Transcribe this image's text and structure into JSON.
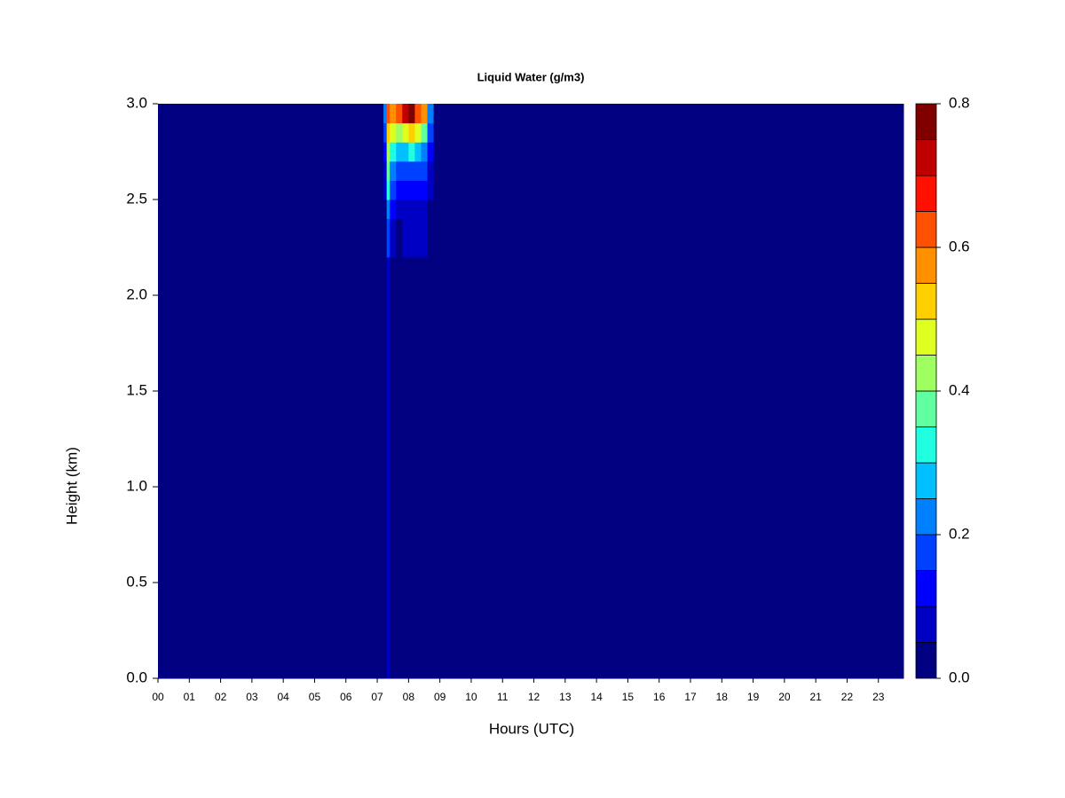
{
  "chart_data": {
    "type": "contour",
    "title": "Liquid Water (g/m3)",
    "xlabel": "Hours (UTC)",
    "ylabel": "Height (km)",
    "xlim": [
      0,
      23.8
    ],
    "ylim": [
      0,
      3
    ],
    "xticks": [
      {
        "value": 0,
        "label": "00"
      },
      {
        "value": 1,
        "label": "01"
      },
      {
        "value": 2,
        "label": "02"
      },
      {
        "value": 3,
        "label": "03"
      },
      {
        "value": 4,
        "label": "04"
      },
      {
        "value": 5,
        "label": "05"
      },
      {
        "value": 6,
        "label": "06"
      },
      {
        "value": 7,
        "label": "07"
      },
      {
        "value": 8,
        "label": "08"
      },
      {
        "value": 9,
        "label": "09"
      },
      {
        "value": 10,
        "label": "10"
      },
      {
        "value": 11,
        "label": "11"
      },
      {
        "value": 12,
        "label": "12"
      },
      {
        "value": 13,
        "label": "13"
      },
      {
        "value": 14,
        "label": "14"
      },
      {
        "value": 15,
        "label": "15"
      },
      {
        "value": 16,
        "label": "16"
      },
      {
        "value": 17,
        "label": "17"
      },
      {
        "value": 18,
        "label": "18"
      },
      {
        "value": 19,
        "label": "19"
      },
      {
        "value": 20,
        "label": "20"
      },
      {
        "value": 21,
        "label": "21"
      },
      {
        "value": 22,
        "label": "22"
      },
      {
        "value": 23,
        "label": "23"
      }
    ],
    "yticks": [
      {
        "value": 0,
        "label": "0.0"
      },
      0.5,
      {
        "value": 1,
        "label": "1.0"
      },
      1.5,
      {
        "value": 2,
        "label": "2.0"
      },
      2.5,
      {
        "value": 3,
        "label": "3.0"
      }
    ],
    "x_edges": [
      0,
      6.5,
      6.7,
      7.2,
      7.3,
      7.4,
      7.6,
      7.8,
      8.0,
      8.2,
      8.4,
      8.6,
      8.8,
      23.8
    ],
    "y_edges": [
      0,
      2.2,
      2.4,
      2.5,
      2.6,
      2.7,
      2.8,
      2.9,
      3.0
    ],
    "z": [
      [
        0,
        0,
        0,
        0,
        0.06,
        0,
        0,
        0,
        0,
        0,
        0,
        0,
        0
      ],
      [
        0,
        0,
        0,
        0,
        0.15,
        0.06,
        0.03,
        0.06,
        0.06,
        0.06,
        0.06,
        0,
        0
      ],
      [
        0,
        0,
        0,
        0.03,
        0.2,
        0.1,
        0.08,
        0.08,
        0.08,
        0.08,
        0.08,
        0.03,
        0
      ],
      [
        0,
        0,
        0,
        0.06,
        0.3,
        0.15,
        0.12,
        0.12,
        0.12,
        0.12,
        0.1,
        0.06,
        0
      ],
      [
        0,
        0,
        0,
        0.08,
        0.35,
        0.2,
        0.17,
        0.18,
        0.18,
        0.17,
        0.15,
        0.08,
        0
      ],
      [
        0,
        0,
        0,
        0.1,
        0.42,
        0.3,
        0.25,
        0.28,
        0.3,
        0.26,
        0.22,
        0.1,
        0
      ],
      [
        0,
        0,
        0,
        0.15,
        0.5,
        0.45,
        0.4,
        0.45,
        0.5,
        0.45,
        0.35,
        0.15,
        0
      ],
      [
        0,
        0,
        0,
        0.2,
        0.6,
        0.55,
        0.62,
        0.7,
        0.78,
        0.6,
        0.55,
        0.2,
        0
      ]
    ],
    "levels": [
      0,
      0.05,
      0.1,
      0.15,
      0.2,
      0.25,
      0.3,
      0.35,
      0.4,
      0.45,
      0.5,
      0.55,
      0.6,
      0.65,
      0.7,
      0.75,
      0.8
    ],
    "colors": [
      "#000080",
      "#0000c4",
      "#0000ff",
      "#0040ff",
      "#0080ff",
      "#00c0ff",
      "#20ffdf",
      "#60ff9f",
      "#9fff60",
      "#dfff20",
      "#ffd000",
      "#ff9000",
      "#ff5000",
      "#ff1000",
      "#c00000",
      "#800000"
    ],
    "colorbar_ticks": [
      {
        "value": 0,
        "label": "0.0"
      },
      0.2,
      0.4,
      0.6,
      0.8
    ]
  }
}
